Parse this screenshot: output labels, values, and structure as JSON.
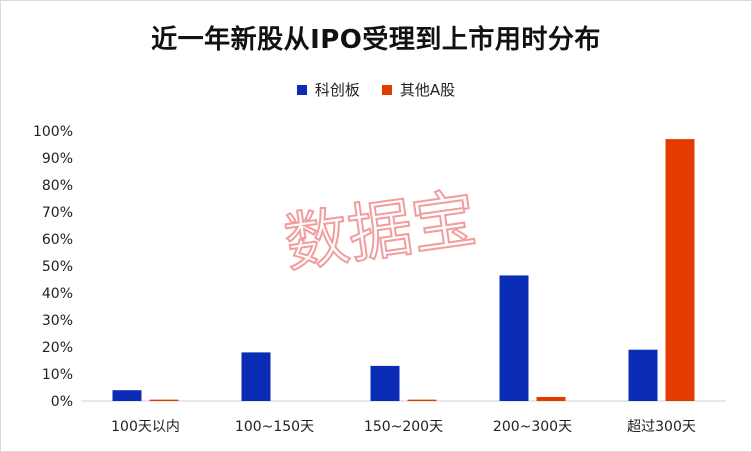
{
  "chart_data": {
    "type": "bar",
    "title": "近一年新股从IPO受理到上市用时分布",
    "categories": [
      "100天以内",
      "100~150天",
      "150~200天",
      "200~300天",
      "超过300天"
    ],
    "series": [
      {
        "name": "科创板",
        "color": "#0B2DB5",
        "values": [
          4,
          18,
          13,
          46.5,
          19
        ]
      },
      {
        "name": "其他A股",
        "color": "#E43B00",
        "values": [
          0.5,
          0,
          0.5,
          1.5,
          97
        ]
      }
    ],
    "y_ticks": [
      "0%",
      "10%",
      "20%",
      "30%",
      "40%",
      "50%",
      "60%",
      "70%",
      "80%",
      "90%",
      "100%"
    ],
    "ylim": [
      0,
      100
    ],
    "legend_position": "top",
    "grid": false
  },
  "watermark": "数据宝"
}
